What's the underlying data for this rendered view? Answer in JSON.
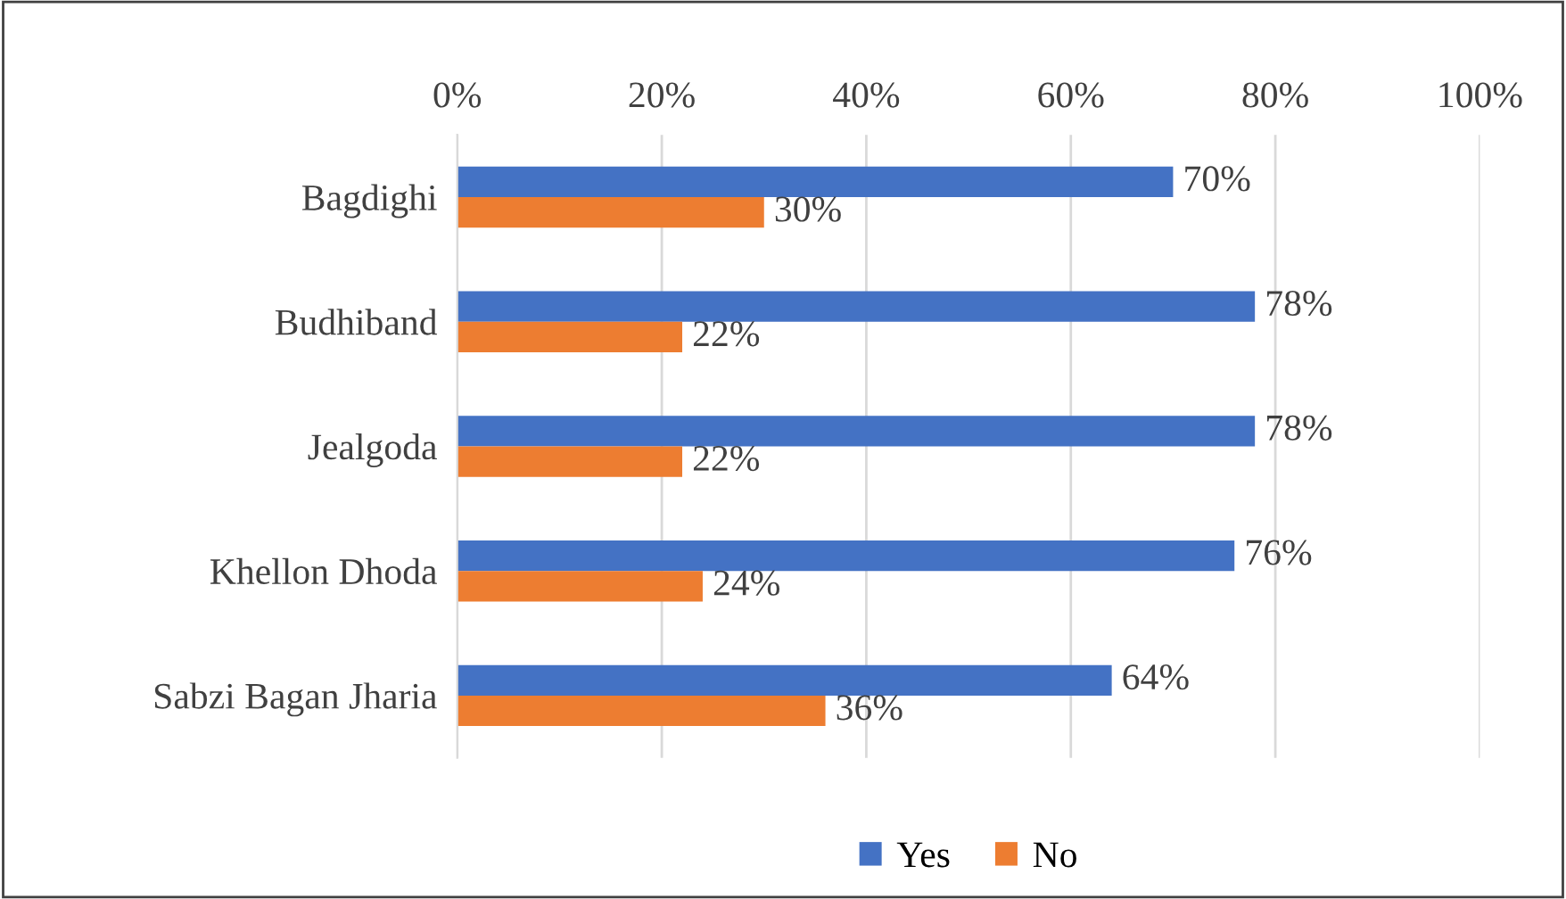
{
  "chart_data": {
    "type": "bar",
    "orientation": "horizontal",
    "categories": [
      "Bagdighi",
      "Budhiband",
      "Jealgoda",
      "Khellon Dhoda",
      "Sabzi Bagan Jharia"
    ],
    "series": [
      {
        "name": "Yes",
        "color": "#4472c4",
        "values": [
          70,
          78,
          78,
          76,
          64
        ],
        "value_labels": [
          "70%",
          "78%",
          "78%",
          "76%",
          "64%"
        ]
      },
      {
        "name": "No",
        "color": "#ed7d31",
        "values": [
          30,
          22,
          22,
          24,
          36
        ],
        "value_labels": [
          "30%",
          "22%",
          "22%",
          "24%",
          "36%"
        ]
      }
    ],
    "xlim": [
      0,
      100
    ],
    "xticks": [
      {
        "value": 0,
        "label": "0%"
      },
      {
        "value": 20,
        "label": "20%"
      },
      {
        "value": 40,
        "label": "40%"
      },
      {
        "value": 60,
        "label": "60%"
      },
      {
        "value": 80,
        "label": "80%"
      },
      {
        "value": 100,
        "label": "100%"
      }
    ],
    "grid": "x",
    "legend": "bottom"
  }
}
